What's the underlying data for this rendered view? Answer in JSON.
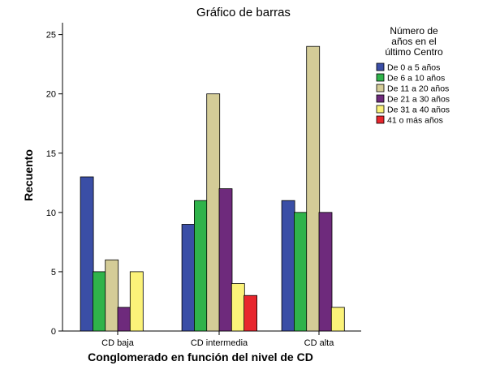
{
  "chart_data": {
    "type": "bar",
    "title": "Gráfico de barras",
    "xlabel": "Conglomerado en función del nivel de CD",
    "ylabel": "Recuento",
    "ylim": [
      0,
      26
    ],
    "yticks": [
      0,
      5,
      10,
      15,
      20,
      25
    ],
    "categories": [
      "CD baja",
      "CD intermedia",
      "CD alta"
    ],
    "legend_title": [
      "Número de",
      "años en el",
      "último Centro"
    ],
    "legend_position": "top-right",
    "grid": false,
    "series": [
      {
        "name": "De 0 a 5 años",
        "color": "#3a4ea6",
        "values": [
          13,
          9,
          11
        ]
      },
      {
        "name": "De 6 a 10 años",
        "color": "#2fb34a",
        "values": [
          5,
          11,
          10
        ]
      },
      {
        "name": "De 11 a 20 años",
        "color": "#d4cc97",
        "values": [
          6,
          20,
          24
        ]
      },
      {
        "name": "De 21 a 30 años",
        "color": "#6e2a7c",
        "values": [
          2,
          12,
          10
        ]
      },
      {
        "name": "De 31 a 40 años",
        "color": "#fbf279",
        "values": [
          5,
          4,
          2
        ]
      },
      {
        "name": "41 o más años",
        "color": "#e8262d",
        "values": [
          0,
          3,
          0
        ]
      }
    ]
  }
}
